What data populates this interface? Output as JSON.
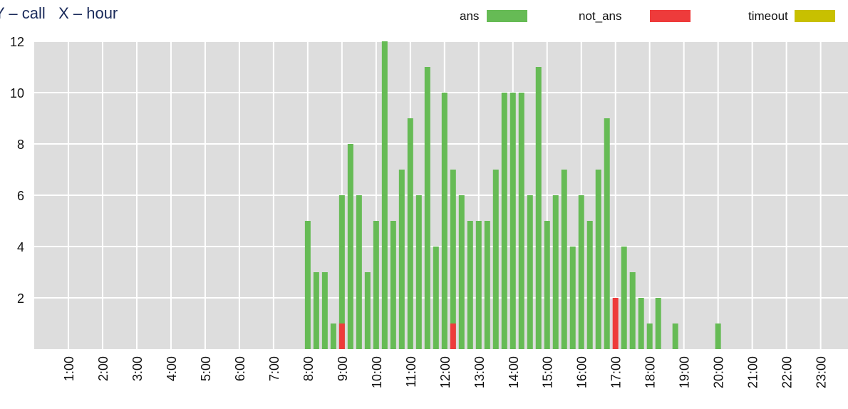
{
  "chart_data": {
    "type": "bar",
    "title": "Y – call   X – hour",
    "x": [
      8,
      8.25,
      8.5,
      8.75,
      9,
      9.25,
      9.5,
      9.75,
      10,
      10.25,
      10.5,
      10.75,
      11,
      11.25,
      11.5,
      11.75,
      12,
      12.25,
      12.5,
      12.75,
      13,
      13.25,
      13.5,
      13.75,
      14,
      14.25,
      14.5,
      14.75,
      15,
      15.25,
      15.5,
      15.75,
      16,
      16.25,
      16.5,
      16.75,
      17,
      17.25,
      17.5,
      17.75,
      18,
      18.25,
      18.5,
      18.75,
      19,
      19.25,
      19.5,
      19.75,
      20
    ],
    "series": [
      {
        "name": "ans",
        "color": "#66bb55",
        "values": [
          5,
          3,
          3,
          1,
          6,
          8,
          6,
          3,
          5,
          12,
          5,
          7,
          9,
          6,
          11,
          4,
          10,
          7,
          6,
          5,
          5,
          5,
          7,
          10,
          10,
          10,
          6,
          11,
          5,
          6,
          7,
          4,
          6,
          5,
          7,
          9,
          0,
          4,
          3,
          2,
          1,
          2,
          0,
          1,
          0,
          0,
          0,
          0,
          1
        ]
      },
      {
        "name": "not_ans",
        "color": "#ee3b3b",
        "values": [
          0,
          0,
          0,
          0,
          1,
          0,
          0,
          0,
          0,
          0,
          0,
          0,
          0,
          0,
          0,
          0,
          0,
          1,
          0,
          0,
          0,
          0,
          0,
          0,
          0,
          0,
          0,
          0,
          0,
          0,
          0,
          0,
          0,
          0,
          0,
          0,
          2,
          0,
          0,
          0,
          0,
          0,
          0,
          0,
          0,
          0,
          0,
          0,
          0
        ]
      },
      {
        "name": "timeout",
        "color": "#c8c000",
        "values": [
          0,
          0,
          0,
          0,
          0,
          0,
          0,
          0,
          0,
          0,
          0,
          0,
          0,
          0,
          0,
          0,
          0,
          0,
          0,
          0,
          0,
          0,
          0,
          0,
          0,
          0,
          0,
          0,
          0,
          0,
          0,
          0,
          0,
          0,
          0,
          0,
          0,
          0,
          0,
          0,
          0,
          0,
          0,
          0,
          0,
          0,
          0,
          0,
          0
        ]
      }
    ],
    "xlim": [
      0,
      23.8
    ],
    "xticks": [
      {
        "value": 1,
        "label": "1:00"
      },
      {
        "value": 2,
        "label": "2:00"
      },
      {
        "value": 3,
        "label": "3:00"
      },
      {
        "value": 4,
        "label": "4:00"
      },
      {
        "value": 5,
        "label": "5:00"
      },
      {
        "value": 6,
        "label": "6:00"
      },
      {
        "value": 7,
        "label": "7:00"
      },
      {
        "value": 8,
        "label": "8:00"
      },
      {
        "value": 9,
        "label": "9:00"
      },
      {
        "value": 10,
        "label": "10:00"
      },
      {
        "value": 11,
        "label": "11:00"
      },
      {
        "value": 12,
        "label": "12:00"
      },
      {
        "value": 13,
        "label": "13:00"
      },
      {
        "value": 14,
        "label": "14:00"
      },
      {
        "value": 15,
        "label": "15:00"
      },
      {
        "value": 16,
        "label": "16:00"
      },
      {
        "value": 17,
        "label": "17:00"
      },
      {
        "value": 18,
        "label": "18:00"
      },
      {
        "value": 19,
        "label": "19:00"
      },
      {
        "value": 20,
        "label": "20:00"
      },
      {
        "value": 21,
        "label": "21:00"
      },
      {
        "value": 22,
        "label": "22:00"
      },
      {
        "value": 23,
        "label": "23:00"
      }
    ],
    "ylim": [
      0,
      12
    ],
    "yticks": [
      2,
      4,
      6,
      8,
      10,
      12
    ],
    "grid": true
  }
}
